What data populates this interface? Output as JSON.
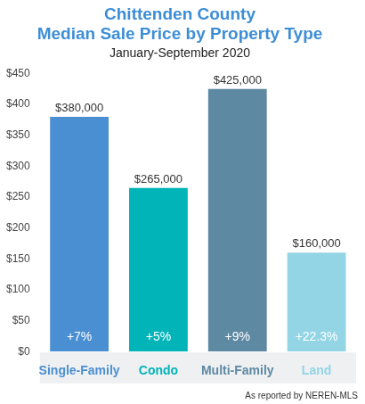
{
  "chart_data": {
    "type": "bar",
    "title": [
      "Chittenden County",
      "Median Sale Price by Property Type"
    ],
    "subtitle": "January-September 2020",
    "categories": [
      "Single-Family",
      "Condo",
      "Multi-Family",
      "Land"
    ],
    "values": [
      380,
      265,
      425,
      160
    ],
    "value_labels": [
      "$380,000",
      "$265,000",
      "$425,000",
      "$160,000"
    ],
    "data_labels": true,
    "annotations": [
      "+7%",
      "+5%",
      "+9%",
      "+22.3%"
    ],
    "footnote": "As reported by NEREN-MLS",
    "colors": [
      "#4a8fd1",
      "#00b4b8",
      "#5e89a3",
      "#93d5e4"
    ],
    "ylim": [
      0,
      450
    ],
    "yticks": [
      {
        "value": 0,
        "label": "$0"
      },
      {
        "value": 50,
        "label": "$50"
      },
      {
        "value": 100,
        "label": "$100"
      },
      {
        "value": 150,
        "label": "$150"
      },
      {
        "value": 200,
        "label": "$200"
      },
      {
        "value": 250,
        "label": "$250"
      },
      {
        "value": 300,
        "label": "$300"
      },
      {
        "value": 350,
        "label": "$350"
      },
      {
        "value": 400,
        "label": "$400"
      },
      {
        "value": 450,
        "label": "$450"
      }
    ],
    "grid": false
  }
}
